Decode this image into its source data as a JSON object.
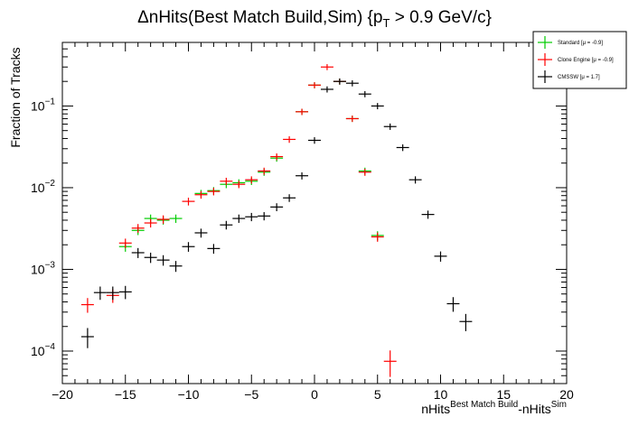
{
  "chart_data": {
    "type": "scatter",
    "title_main": "ΔnHits(Best Match Build,Sim) {p",
    "title_sub": "T",
    "title_tail": " > 0.9 GeV/c}",
    "ylabel": "Fraction of Tracks",
    "xlabel_main": "nHits",
    "xlabel_sup1": "Best Match Build",
    "xlabel_mid": "-nHits",
    "xlabel_sup2": "Sim",
    "xlim": [
      -20,
      20
    ],
    "ylim": [
      4e-05,
      0.6
    ],
    "yscale": "log",
    "x_ticks": [
      -20,
      -15,
      -10,
      -5,
      0,
      5,
      10,
      15,
      20
    ],
    "x_tick_labels": [
      "−20",
      "−15",
      "−10",
      "−5",
      "0",
      "5",
      "10",
      "15",
      "20"
    ],
    "y_ticks": [
      {
        "base": "10",
        "exp": "−4",
        "value": 0.0001
      },
      {
        "base": "10",
        "exp": "−3",
        "value": 0.001
      },
      {
        "base": "10",
        "exp": "−2",
        "value": 0.01
      },
      {
        "base": "10",
        "exp": "−1",
        "value": 0.1
      }
    ],
    "legend": {
      "placement": "top-right",
      "entries": [
        {
          "label": "Standard  [μ = -0.9]",
          "color": "#00cc00"
        },
        {
          "label": "Clone Engine  [μ = -0.9]",
          "color": "#ff0000"
        },
        {
          "label": "CMSSW  [μ = 1.7]",
          "color": "#000000"
        }
      ]
    },
    "series": [
      {
        "name": "Standard",
        "color": "#00cc00",
        "points": [
          {
            "x": -15,
            "y": 0.0019
          },
          {
            "x": -14,
            "y": 0.003
          },
          {
            "x": -13,
            "y": 0.0042
          },
          {
            "x": -12,
            "y": 0.004
          },
          {
            "x": -11,
            "y": 0.0042
          },
          {
            "x": -9,
            "y": 0.0085
          },
          {
            "x": -8,
            "y": 0.0092
          },
          {
            "x": -7,
            "y": 0.011
          },
          {
            "x": -6,
            "y": 0.0115
          },
          {
            "x": -5,
            "y": 0.012
          },
          {
            "x": -4,
            "y": 0.0155
          },
          {
            "x": -3,
            "y": 0.023
          },
          {
            "x": -1,
            "y": 0.085
          },
          {
            "x": 0,
            "y": 0.18
          },
          {
            "x": 2,
            "y": 0.2
          },
          {
            "x": 3,
            "y": 0.07
          },
          {
            "x": 4,
            "y": 0.016
          },
          {
            "x": 5,
            "y": 0.0026
          }
        ]
      },
      {
        "name": "Clone Engine",
        "color": "#ff0000",
        "points": [
          {
            "x": -18,
            "y": 0.00037
          },
          {
            "x": -16,
            "y": 0.00048
          },
          {
            "x": -15,
            "y": 0.0021
          },
          {
            "x": -14,
            "y": 0.0032
          },
          {
            "x": -13,
            "y": 0.0037
          },
          {
            "x": -12,
            "y": 0.0041
          },
          {
            "x": -10,
            "y": 0.0068
          },
          {
            "x": -9,
            "y": 0.0082
          },
          {
            "x": -8,
            "y": 0.009
          },
          {
            "x": -7,
            "y": 0.012
          },
          {
            "x": -6,
            "y": 0.011
          },
          {
            "x": -5,
            "y": 0.0125
          },
          {
            "x": -4,
            "y": 0.016
          },
          {
            "x": -3,
            "y": 0.024
          },
          {
            "x": -2,
            "y": 0.039
          },
          {
            "x": -1,
            "y": 0.085
          },
          {
            "x": 0,
            "y": 0.18
          },
          {
            "x": 1,
            "y": 0.3
          },
          {
            "x": 2,
            "y": 0.2
          },
          {
            "x": 3,
            "y": 0.07
          },
          {
            "x": 4,
            "y": 0.0155
          },
          {
            "x": 5,
            "y": 0.0025
          },
          {
            "x": 6,
            "y": 7.5e-05
          }
        ]
      },
      {
        "name": "CMSSW",
        "color": "#000000",
        "points": [
          {
            "x": -18,
            "y": 0.00015
          },
          {
            "x": -17,
            "y": 0.00052
          },
          {
            "x": -16,
            "y": 0.00052
          },
          {
            "x": -15,
            "y": 0.00053
          },
          {
            "x": -14,
            "y": 0.0016
          },
          {
            "x": -13,
            "y": 0.0014
          },
          {
            "x": -12,
            "y": 0.0013
          },
          {
            "x": -11,
            "y": 0.0011
          },
          {
            "x": -10,
            "y": 0.0019
          },
          {
            "x": -9,
            "y": 0.0028
          },
          {
            "x": -8,
            "y": 0.0018
          },
          {
            "x": -7,
            "y": 0.0035
          },
          {
            "x": -6,
            "y": 0.0042
          },
          {
            "x": -5,
            "y": 0.0044
          },
          {
            "x": -4,
            "y": 0.0045
          },
          {
            "x": -3,
            "y": 0.0058
          },
          {
            "x": -2,
            "y": 0.0075
          },
          {
            "x": -1,
            "y": 0.014
          },
          {
            "x": 0,
            "y": 0.038
          },
          {
            "x": 1,
            "y": 0.16
          },
          {
            "x": 2,
            "y": 0.2
          },
          {
            "x": 3,
            "y": 0.19
          },
          {
            "x": 4,
            "y": 0.14
          },
          {
            "x": 5,
            "y": 0.1
          },
          {
            "x": 6,
            "y": 0.056
          },
          {
            "x": 7,
            "y": 0.031
          },
          {
            "x": 8,
            "y": 0.0125
          },
          {
            "x": 9,
            "y": 0.0047
          },
          {
            "x": 10,
            "y": 0.00145
          },
          {
            "x": 11,
            "y": 0.00038
          },
          {
            "x": 12,
            "y": 0.00023
          }
        ]
      }
    ]
  }
}
